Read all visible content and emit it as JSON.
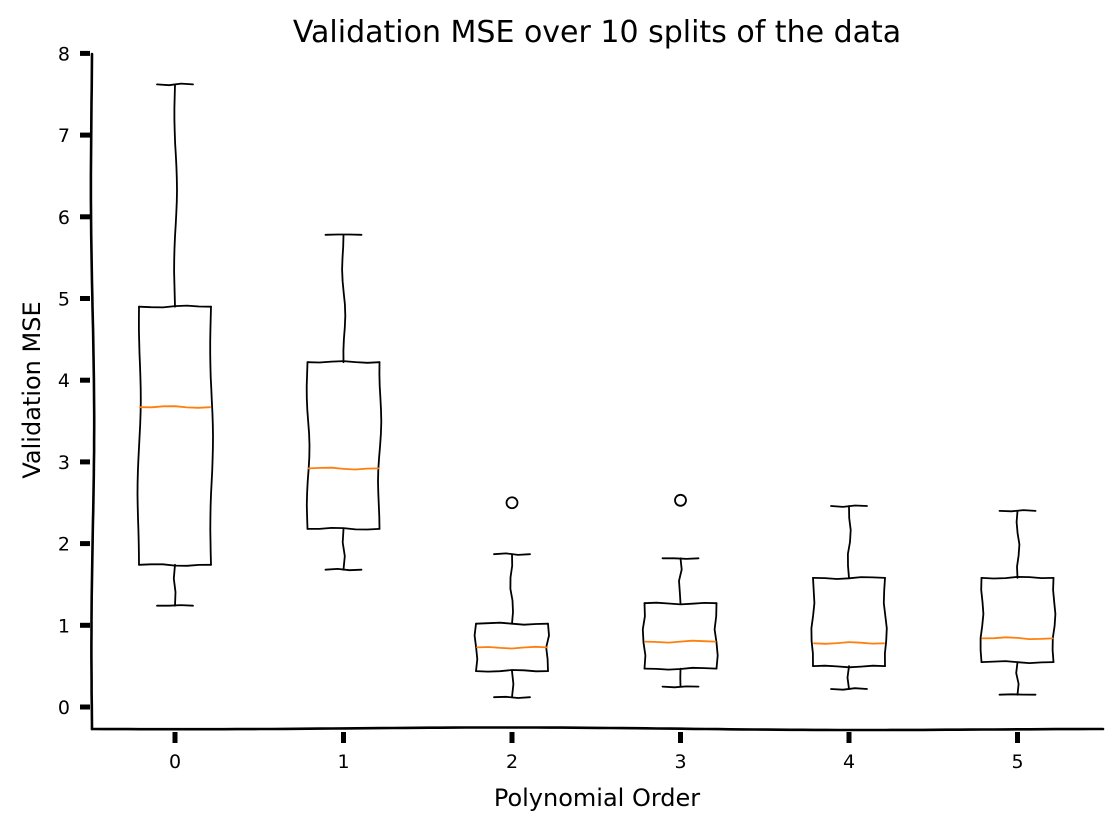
{
  "chart_data": {
    "type": "boxplot",
    "title": "Validation MSE over 10 splits of the data",
    "xlabel": "Polynomial Order",
    "ylabel": "Validation MSE",
    "ylim": [
      -0.25,
      8
    ],
    "yticks": [
      0,
      1,
      2,
      3,
      4,
      5,
      6,
      7,
      8
    ],
    "categories": [
      "0",
      "1",
      "2",
      "3",
      "4",
      "5"
    ],
    "boxes": [
      {
        "category": "0",
        "whisker_low": 1.24,
        "q1": 1.74,
        "median": 3.67,
        "q3": 4.9,
        "whisker_high": 7.62,
        "outliers": []
      },
      {
        "category": "1",
        "whisker_low": 1.68,
        "q1": 2.18,
        "median": 2.92,
        "q3": 4.22,
        "whisker_high": 5.78,
        "outliers": []
      },
      {
        "category": "2",
        "whisker_low": 0.12,
        "q1": 0.44,
        "median": 0.73,
        "q3": 1.02,
        "whisker_high": 1.87,
        "outliers": [
          2.5
        ]
      },
      {
        "category": "3",
        "whisker_low": 0.25,
        "q1": 0.47,
        "median": 0.8,
        "q3": 1.27,
        "whisker_high": 1.82,
        "outliers": [
          2.53
        ]
      },
      {
        "category": "4",
        "whisker_low": 0.22,
        "q1": 0.5,
        "median": 0.78,
        "q3": 1.58,
        "whisker_high": 2.46,
        "outliers": []
      },
      {
        "category": "5",
        "whisker_low": 0.15,
        "q1": 0.55,
        "median": 0.84,
        "q3": 1.58,
        "whisker_high": 2.4,
        "outliers": []
      }
    ],
    "colors": {
      "box": "#000000",
      "median": "#ff7f0e"
    },
    "grid": false,
    "style": "xkcd"
  }
}
